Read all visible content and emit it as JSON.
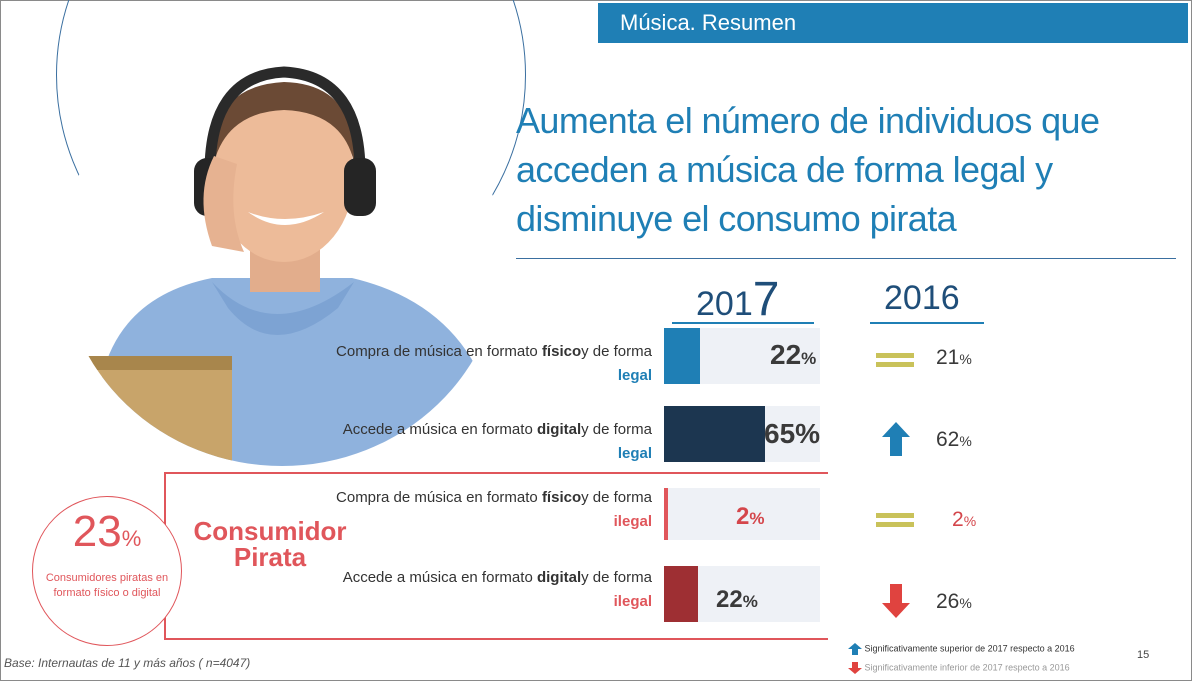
{
  "header": {
    "title": "Música. Resumen"
  },
  "headline": "Aumenta el número de individuos que acceden a música de forma legal y disminuye el consumo pirata",
  "years": {
    "current_prefix": "201",
    "current_suffix": "7",
    "previous": "2016"
  },
  "rows": [
    {
      "label_start": "Compra de música en formato ",
      "label_format": "físico",
      "label_mid": "y de forma ",
      "label_legality": "legal",
      "value_2017": "22",
      "value_2016": "21",
      "change": "equal",
      "legality": "legal"
    },
    {
      "label_start": "Accede a música en formato ",
      "label_format": "digital",
      "label_mid": "y de forma ",
      "label_legality": "legal",
      "value_2017": "65",
      "value_2016": "62",
      "change": "up",
      "legality": "legal"
    },
    {
      "label_start": "Compra de música en formato ",
      "label_format": "físico",
      "label_mid": "y de forma ",
      "label_legality": "ilegal",
      "value_2017": "2",
      "value_2016": "2",
      "change": "equal",
      "legality": "ilegal"
    },
    {
      "label_start": "Accede a  música en formato ",
      "label_format": "digital",
      "label_mid": "y de forma ",
      "label_legality": "ilegal",
      "value_2017": "22",
      "value_2016": "26",
      "change": "down",
      "legality": "ilegal"
    }
  ],
  "percent_sign": "%",
  "pirate": {
    "value": "23",
    "description": "Consumidores piratas en formato físico o digital",
    "title_line1": "Consumidor",
    "title_line2": "Pirata"
  },
  "footnote": "Base: Internautas de 11 y más años ( n=4047)",
  "legend": {
    "up": "Significativamente superior de 2017 respecto a 2016",
    "down": "Significativamente inferior de 2017 respecto a 2016"
  },
  "page_number": "15",
  "colors": {
    "accent": "#1f7fb5",
    "dark_bar": "#1c3650",
    "pirate": "#e0565b",
    "dark_red": "#9e2f33",
    "equal": "#c9c25a"
  }
}
